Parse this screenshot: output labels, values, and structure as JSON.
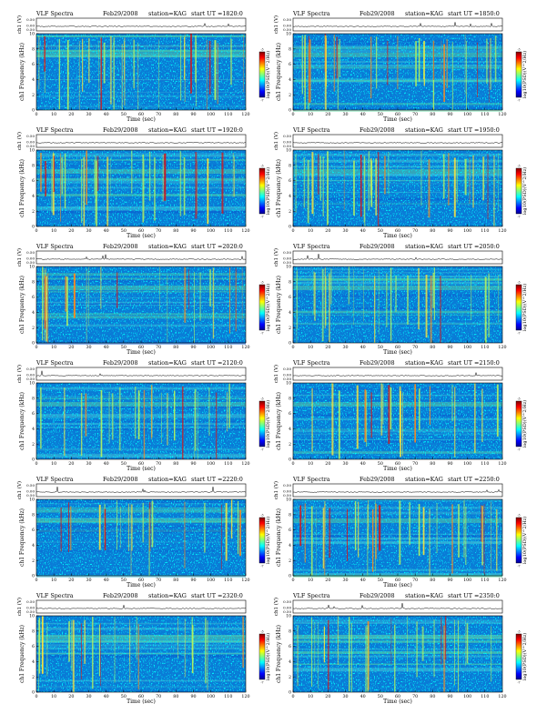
{
  "colors": {
    "background": "#0a7bd6",
    "colormap": [
      "#00008f",
      "#0000ff",
      "#007fff",
      "#00ffff",
      "#7fff7f",
      "#ffff00",
      "#ff7f00",
      "#ff0000",
      "#7f0000"
    ]
  },
  "common": {
    "heading_left": "VLF Spectra",
    "date": "Feb29/2008",
    "station": "station=KAG",
    "ch_label": "ch1 (V)",
    "ch_ticks": [
      "0.00",
      "0.50"
    ],
    "ch_tick_top": "0.50",
    "y_label": "ch1 Frequency (kHz)",
    "y_ticks": [
      "0",
      "2",
      "4",
      "6",
      "8",
      "10"
    ],
    "x_label": "Time (sec)",
    "x_ticks": [
      "0",
      "10",
      "20",
      "30",
      "40",
      "50",
      "60",
      "70",
      "80",
      "90",
      "100",
      "110",
      "120"
    ],
    "colorbar_label": "log10(PSD)(V^2/Hz)",
    "colorbar_ticks": [
      "-7",
      "-3"
    ]
  },
  "chart_data": [
    {
      "type": "heatmap",
      "start": "start UT =1820:0",
      "title": "VLF Spectra   Feb29/2008   station=KAG   start UT =1820:0",
      "xlim": [
        0,
        120
      ],
      "ylim": [
        0,
        10
      ],
      "xlabel": "Time (sec)",
      "ylabel": "ch1 Frequency (kHz)",
      "colorbar_label": "log10(PSD)(V^2/Hz)"
    },
    {
      "type": "heatmap",
      "start": "start UT =1850:0",
      "title": "VLF Spectra   Feb29/2008   station=KAG   start UT =1850:0",
      "xlim": [
        0,
        120
      ],
      "ylim": [
        0,
        10
      ],
      "xlabel": "Time (sec)",
      "ylabel": "ch1 Frequency (kHz)",
      "colorbar_label": "log10(PSD)(V^2/Hz)"
    },
    {
      "type": "heatmap",
      "start": "start UT =1920:0",
      "title": "VLF Spectra   Feb29/2008   station=KAG   start UT =1920:0",
      "xlim": [
        0,
        120
      ],
      "ylim": [
        0,
        10
      ],
      "xlabel": "Time (sec)",
      "ylabel": "ch1 Frequency (kHz)",
      "colorbar_label": "log10(PSD)(V^2/Hz)"
    },
    {
      "type": "heatmap",
      "start": "start UT =1950:0",
      "title": "VLF Spectra   Feb29/2008   station=KAG   start UT =1950:0",
      "xlim": [
        0,
        120
      ],
      "ylim": [
        0,
        10
      ],
      "xlabel": "Time (sec)",
      "ylabel": "ch1 Frequency (kHz)",
      "colorbar_label": "log10(PSD)(V^2/Hz)"
    },
    {
      "type": "heatmap",
      "start": "start UT =2020:0",
      "title": "VLF Spectra   Feb29/2008   station=KAG   start UT =2020:0",
      "xlim": [
        0,
        120
      ],
      "ylim": [
        0,
        10
      ],
      "xlabel": "Time (sec)",
      "ylabel": "ch1 Frequency (kHz)",
      "colorbar_label": "log10(PSD)(V^2/Hz)"
    },
    {
      "type": "heatmap",
      "start": "start UT =2050:0",
      "title": "VLF Spectra   Feb29/2008   station=KAG   start UT =2050:0",
      "xlim": [
        0,
        120
      ],
      "ylim": [
        0,
        10
      ],
      "xlabel": "Time (sec)",
      "ylabel": "ch1 Frequency (kHz)",
      "colorbar_label": "log10(PSD)(V^2/Hz)"
    },
    {
      "type": "heatmap",
      "start": "start UT =2120:0",
      "title": "VLF Spectra   Feb29/2008   station=KAG   start UT =2120:0",
      "xlim": [
        0,
        120
      ],
      "ylim": [
        0,
        10
      ],
      "xlabel": "Time (sec)",
      "ylabel": "ch1 Frequency (kHz)",
      "colorbar_label": "log10(PSD)(V^2/Hz)"
    },
    {
      "type": "heatmap",
      "start": "start UT =2150:0",
      "title": "VLF Spectra   Feb29/2008   station=KAG   start UT =2150:0",
      "xlim": [
        0,
        120
      ],
      "ylim": [
        0,
        10
      ],
      "xlabel": "Time (sec)",
      "ylabel": "ch1 Frequency (kHz)",
      "colorbar_label": "log10(PSD)(V^2/Hz)"
    },
    {
      "type": "heatmap",
      "start": "start UT =2220:0",
      "title": "VLF Spectra   Feb29/2008   station=KAG   start UT =2220:0",
      "xlim": [
        0,
        120
      ],
      "ylim": [
        0,
        10
      ],
      "xlabel": "Time (sec)",
      "ylabel": "ch1 Frequency (kHz)",
      "colorbar_label": "log10(PSD)(V^2/Hz)"
    },
    {
      "type": "heatmap",
      "start": "start UT =2250:0",
      "title": "VLF Spectra   Feb29/2008   station=KAG   start UT =2250:0",
      "xlim": [
        0,
        120
      ],
      "ylim": [
        0,
        10
      ],
      "xlabel": "Time (sec)",
      "ylabel": "ch1 Frequency (kHz)",
      "colorbar_label": "log10(PSD)(V^2/Hz)"
    },
    {
      "type": "heatmap",
      "start": "start UT =2320:0",
      "title": "VLF Spectra   Feb29/2008   station=KAG   start UT =2320:0",
      "xlim": [
        0,
        120
      ],
      "ylim": [
        0,
        10
      ],
      "xlabel": "Time (sec)",
      "ylabel": "ch1 Frequency (kHz)",
      "colorbar_label": "log10(PSD)(V^2/Hz)"
    },
    {
      "type": "heatmap",
      "start": "start UT =2350:0",
      "title": "VLF Spectra   Feb29/2008   station=KAG   start UT =2350:0",
      "xlim": [
        0,
        120
      ],
      "ylim": [
        0,
        10
      ],
      "xlabel": "Time (sec)",
      "ylabel": "ch1 Frequency (kHz)",
      "colorbar_label": "log10(PSD)(V^2/Hz)"
    }
  ]
}
